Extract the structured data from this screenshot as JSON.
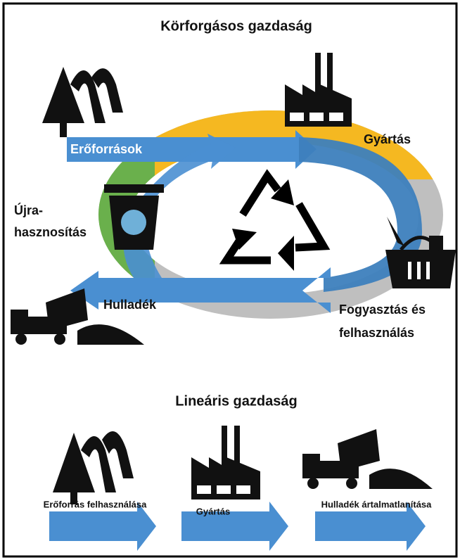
{
  "circular": {
    "title": "Körforgásos gazdaság",
    "stages": {
      "resources": "Erőforrások",
      "production": "Gyártás",
      "recycling": [
        "Újra-",
        "hasznosítás"
      ],
      "consumption": [
        "Fogyasztás és",
        "felhasználás"
      ],
      "waste": "Hulladék"
    }
  },
  "linear": {
    "title": "Lineáris gazdaság",
    "steps": [
      "Erőforrás felhasználása",
      "Gyártás",
      "Hulladék ártalmatlanítása"
    ]
  }
}
